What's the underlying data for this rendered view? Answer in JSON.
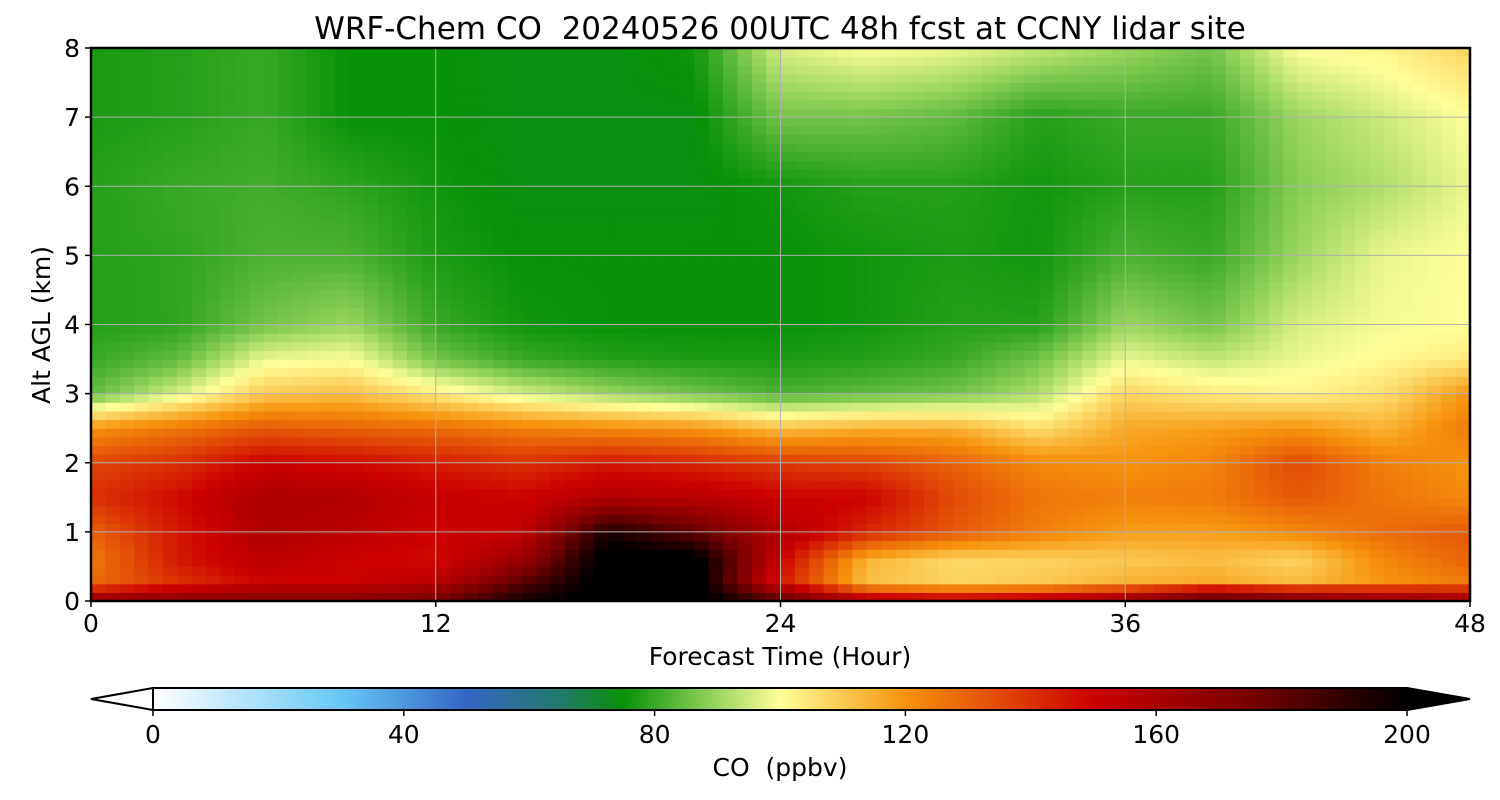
{
  "chart_data": {
    "type": "heatmap",
    "title": "WRF-Chem CO  20240526 00UTC 48h fcst at CCNY lidar site",
    "xlabel": "Forecast Time (Hour)",
    "ylabel": "Alt AGL (km)",
    "xlim": [
      0,
      48
    ],
    "ylim": [
      0,
      8
    ],
    "xticks": [
      "0",
      "12",
      "24",
      "36",
      "48"
    ],
    "yticks": [
      "0",
      "1",
      "2",
      "3",
      "4",
      "5",
      "6",
      "7",
      "8"
    ],
    "grid": true,
    "colorbar": {
      "label": "CO  (ppbv)",
      "ticks": [
        "0",
        "40",
        "80",
        "120",
        "160",
        "200"
      ],
      "range": [
        0,
        200
      ],
      "extend": "both",
      "stops": [
        {
          "value": 0,
          "color": "#ffffff"
        },
        {
          "value": 30,
          "color": "#66c8f5"
        },
        {
          "value": 50,
          "color": "#3566c6"
        },
        {
          "value": 65,
          "color": "#237a6c"
        },
        {
          "value": 75,
          "color": "#079207"
        },
        {
          "value": 90,
          "color": "#9bd660"
        },
        {
          "value": 100,
          "color": "#ffff99"
        },
        {
          "value": 120,
          "color": "#f7930c"
        },
        {
          "value": 150,
          "color": "#cc0000"
        },
        {
          "value": 175,
          "color": "#780000"
        },
        {
          "value": 200,
          "color": "#000000"
        }
      ]
    },
    "x_hours": [
      0,
      3,
      6,
      9,
      12,
      15,
      18,
      21,
      24,
      27,
      30,
      33,
      36,
      39,
      42,
      45,
      48
    ],
    "alt_km": [
      0,
      0.1,
      0.3,
      0.6,
      1.0,
      1.5,
      2.0,
      2.5,
      3.0,
      3.5,
      4.0,
      5.0,
      6.0,
      7.0,
      8.0
    ],
    "values_ppbv": [
      [
        180,
        175,
        172,
        172,
        176,
        195,
        205,
        205,
        185,
        165,
        162,
        165,
        172,
        182,
        178,
        170,
        172
      ],
      [
        150,
        160,
        165,
        165,
        170,
        192,
        205,
        205,
        170,
        140,
        135,
        138,
        150,
        170,
        160,
        155,
        150
      ],
      [
        128,
        140,
        150,
        150,
        155,
        180,
        205,
        205,
        145,
        112,
        108,
        110,
        114,
        116,
        112,
        120,
        125
      ],
      [
        125,
        145,
        155,
        150,
        148,
        165,
        205,
        205,
        150,
        114,
        107,
        108,
        110,
        112,
        108,
        122,
        130
      ],
      [
        130,
        145,
        158,
        155,
        150,
        152,
        195,
        180,
        158,
        142,
        132,
        124,
        118,
        118,
        122,
        128,
        132
      ],
      [
        140,
        148,
        160,
        158,
        152,
        150,
        158,
        156,
        150,
        150,
        135,
        126,
        124,
        125,
        132,
        126,
        122
      ],
      [
        136,
        140,
        150,
        148,
        144,
        140,
        145,
        142,
        138,
        136,
        130,
        122,
        120,
        123,
        135,
        124,
        120
      ],
      [
        120,
        126,
        132,
        130,
        128,
        124,
        122,
        120,
        112,
        115,
        115,
        106,
        116,
        118,
        120,
        114,
        125
      ],
      [
        84,
        96,
        110,
        112,
        104,
        96,
        90,
        86,
        82,
        84,
        86,
        92,
        108,
        104,
        102,
        106,
        120
      ],
      [
        80,
        84,
        98,
        100,
        86,
        80,
        78,
        77,
        77,
        78,
        80,
        86,
        98,
        94,
        98,
        101,
        104
      ],
      [
        78,
        79,
        86,
        90,
        80,
        76,
        75,
        75,
        75,
        76,
        78,
        78,
        90,
        86,
        96,
        99,
        100
      ],
      [
        78,
        79,
        82,
        82,
        77,
        75,
        75,
        75,
        75,
        76,
        77,
        76,
        82,
        80,
        90,
        98,
        100
      ],
      [
        78,
        80,
        81,
        79,
        76,
        74,
        74,
        74,
        76,
        78,
        78,
        76,
        78,
        78,
        88,
        92,
        98
      ],
      [
        77,
        78,
        80,
        75,
        75,
        74,
        74,
        74,
        86,
        86,
        84,
        78,
        80,
        80,
        90,
        95,
        100
      ],
      [
        77,
        78,
        80,
        75,
        75,
        74,
        74,
        76,
        96,
        100,
        98,
        94,
        90,
        86,
        100,
        102,
        108
      ]
    ]
  }
}
